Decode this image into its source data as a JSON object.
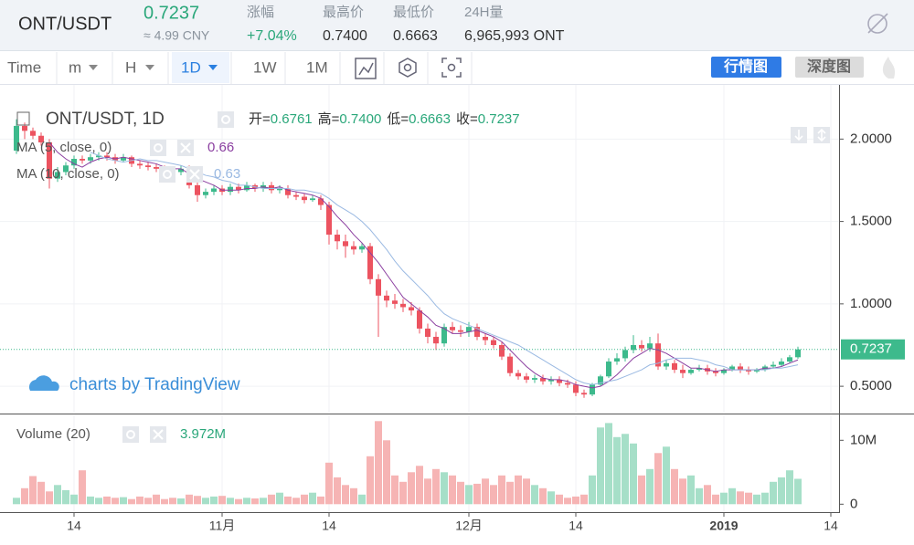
{
  "header": {
    "pair": "ONT/USDT",
    "price": "0.7237",
    "cny": "≈ 4.99 CNY",
    "stats": [
      {
        "label": "涨幅",
        "value": "+7.04%"
      },
      {
        "label": "最高价",
        "value": "0.7400"
      },
      {
        "label": "最低价",
        "value": "0.6663"
      },
      {
        "label": "24H量",
        "value": "6,965,993 ONT"
      }
    ]
  },
  "toolbar": {
    "intervals": [
      "Time",
      "m",
      "H",
      "1D",
      "1W",
      "1M"
    ],
    "views": [
      "行情图",
      "深度图"
    ]
  },
  "chart_data": [
    {
      "type": "candlestick",
      "title": "ONT/USDT, 1D",
      "watermark": "charts by TradingView",
      "legend": [
        {
          "label": "开=",
          "value": "0.6761"
        },
        {
          "label": "高=",
          "value": "0.7400"
        },
        {
          "label": "低=",
          "value": "0.6663"
        },
        {
          "label": "收=",
          "value": "0.7237"
        }
      ],
      "last_value_label": "0.7237",
      "up_color": "#3dba8c",
      "down_color": "#ec5360",
      "open": [
        1.93,
        2.08,
        2.05,
        2.02,
        1.98,
        1.76,
        1.8,
        1.84,
        1.88,
        1.87,
        1.89,
        1.9,
        1.89,
        1.87,
        1.89,
        1.85,
        1.84,
        1.83,
        1.82,
        1.81,
        1.8,
        1.82,
        1.72,
        1.66,
        1.68,
        1.7,
        1.68,
        1.71,
        1.69,
        1.72,
        1.7,
        1.72,
        1.69,
        1.7,
        1.66,
        1.65,
        1.63,
        1.64,
        1.6,
        1.42,
        1.38,
        1.35,
        1.33,
        1.35,
        1.15,
        1.05,
        1.02,
        1.0,
        0.98,
        0.96,
        0.85,
        0.8,
        0.76,
        0.86,
        0.84,
        0.83,
        0.86,
        0.8,
        0.78,
        0.75,
        0.68,
        0.58,
        0.56,
        0.54,
        0.55,
        0.53,
        0.54,
        0.52,
        0.51,
        0.46,
        0.45,
        0.51,
        0.56,
        0.65,
        0.67,
        0.72,
        0.75,
        0.73,
        0.76,
        0.62,
        0.64,
        0.6,
        0.58,
        0.6,
        0.61,
        0.59,
        0.58,
        0.6,
        0.62,
        0.6,
        0.59,
        0.6,
        0.62,
        0.63,
        0.65,
        0.6761
      ],
      "high": [
        2.12,
        2.1,
        2.07,
        2.04,
        2.0,
        1.83,
        1.86,
        1.9,
        1.9,
        1.91,
        1.92,
        1.92,
        1.91,
        1.91,
        1.9,
        1.87,
        1.86,
        1.85,
        1.84,
        1.83,
        1.84,
        1.84,
        1.74,
        1.7,
        1.72,
        1.72,
        1.73,
        1.73,
        1.74,
        1.73,
        1.74,
        1.74,
        1.72,
        1.72,
        1.68,
        1.67,
        1.66,
        1.66,
        1.62,
        1.45,
        1.42,
        1.38,
        1.37,
        1.37,
        1.18,
        1.08,
        1.06,
        1.03,
        1.01,
        0.98,
        0.88,
        0.83,
        0.88,
        0.89,
        0.87,
        0.89,
        0.88,
        0.82,
        0.8,
        0.77,
        0.7,
        0.6,
        0.58,
        0.57,
        0.57,
        0.56,
        0.56,
        0.54,
        0.53,
        0.48,
        0.52,
        0.57,
        0.67,
        0.7,
        0.74,
        0.81,
        0.78,
        0.8,
        0.82,
        0.66,
        0.66,
        0.63,
        0.61,
        0.63,
        0.63,
        0.61,
        0.61,
        0.63,
        0.64,
        0.62,
        0.61,
        0.63,
        0.65,
        0.67,
        0.69,
        0.74
      ],
      "low": [
        1.91,
        2.0,
        2.0,
        1.96,
        1.7,
        1.74,
        1.78,
        1.82,
        1.85,
        1.85,
        1.87,
        1.87,
        1.85,
        1.86,
        1.83,
        1.82,
        1.81,
        1.8,
        1.79,
        1.78,
        1.78,
        1.7,
        1.62,
        1.64,
        1.66,
        1.66,
        1.66,
        1.67,
        1.68,
        1.68,
        1.68,
        1.67,
        1.67,
        1.64,
        1.63,
        1.61,
        1.62,
        1.57,
        1.36,
        1.33,
        1.28,
        1.3,
        1.31,
        1.12,
        0.8,
        0.98,
        0.97,
        0.95,
        0.93,
        0.82,
        0.76,
        0.72,
        0.74,
        0.82,
        0.8,
        0.8,
        0.78,
        0.75,
        0.73,
        0.66,
        0.56,
        0.54,
        0.52,
        0.52,
        0.51,
        0.51,
        0.5,
        0.49,
        0.44,
        0.43,
        0.44,
        0.5,
        0.55,
        0.63,
        0.65,
        0.7,
        0.71,
        0.71,
        0.6,
        0.6,
        0.58,
        0.55,
        0.57,
        0.59,
        0.57,
        0.56,
        0.57,
        0.59,
        0.58,
        0.57,
        0.58,
        0.59,
        0.61,
        0.62,
        0.64,
        0.6663
      ],
      "close": [
        2.08,
        2.05,
        2.02,
        1.98,
        1.76,
        1.8,
        1.84,
        1.88,
        1.87,
        1.89,
        1.9,
        1.89,
        1.87,
        1.89,
        1.85,
        1.84,
        1.83,
        1.82,
        1.81,
        1.8,
        1.82,
        1.72,
        1.66,
        1.68,
        1.7,
        1.68,
        1.71,
        1.69,
        1.72,
        1.7,
        1.72,
        1.69,
        1.7,
        1.66,
        1.65,
        1.63,
        1.64,
        1.6,
        1.42,
        1.38,
        1.35,
        1.33,
        1.35,
        1.15,
        1.05,
        1.02,
        1.0,
        0.98,
        0.96,
        0.85,
        0.8,
        0.76,
        0.86,
        0.84,
        0.83,
        0.86,
        0.8,
        0.78,
        0.75,
        0.68,
        0.58,
        0.56,
        0.54,
        0.55,
        0.53,
        0.54,
        0.52,
        0.51,
        0.46,
        0.45,
        0.51,
        0.56,
        0.65,
        0.67,
        0.72,
        0.75,
        0.73,
        0.76,
        0.62,
        0.64,
        0.6,
        0.58,
        0.6,
        0.61,
        0.59,
        0.58,
        0.6,
        0.62,
        0.6,
        0.59,
        0.6,
        0.62,
        0.63,
        0.65,
        0.6761,
        0.7237
      ],
      "series": [
        {
          "name": "MA (5, close, 0)",
          "color": "#8b3fa0",
          "value_label": "0.66",
          "values": [
            null,
            null,
            null,
            null,
            1.98,
            1.92,
            1.88,
            1.85,
            1.83,
            1.86,
            1.88,
            1.89,
            1.88,
            1.89,
            1.88,
            1.87,
            1.86,
            1.85,
            1.83,
            1.82,
            1.82,
            1.79,
            1.76,
            1.74,
            1.72,
            1.69,
            1.69,
            1.69,
            1.7,
            1.7,
            1.71,
            1.7,
            1.71,
            1.69,
            1.68,
            1.67,
            1.66,
            1.64,
            1.59,
            1.53,
            1.48,
            1.42,
            1.37,
            1.31,
            1.25,
            1.18,
            1.11,
            1.04,
            1.0,
            0.96,
            0.92,
            0.87,
            0.85,
            0.82,
            0.82,
            0.83,
            0.84,
            0.82,
            0.8,
            0.77,
            0.72,
            0.67,
            0.62,
            0.58,
            0.55,
            0.54,
            0.54,
            0.53,
            0.51,
            0.5,
            0.49,
            0.5,
            0.53,
            0.57,
            0.62,
            0.67,
            0.7,
            0.73,
            0.72,
            0.7,
            0.67,
            0.64,
            0.61,
            0.61,
            0.6,
            0.59,
            0.6,
            0.6,
            0.6,
            0.6,
            0.6,
            0.61,
            0.61,
            0.62,
            0.64,
            0.66
          ]
        },
        {
          "name": "MA (10, close, 0)",
          "color": "#9ab9e2",
          "value_label": "0.63",
          "values": [
            null,
            null,
            null,
            null,
            null,
            null,
            null,
            null,
            null,
            1.92,
            1.9,
            1.88,
            1.87,
            1.86,
            1.87,
            1.88,
            1.87,
            1.87,
            1.86,
            1.85,
            1.84,
            1.82,
            1.8,
            1.78,
            1.77,
            1.75,
            1.74,
            1.72,
            1.72,
            1.71,
            1.7,
            1.7,
            1.7,
            1.7,
            1.69,
            1.69,
            1.68,
            1.67,
            1.64,
            1.6,
            1.57,
            1.54,
            1.5,
            1.45,
            1.39,
            1.33,
            1.26,
            1.2,
            1.15,
            1.1,
            1.05,
            0.99,
            0.94,
            0.91,
            0.89,
            0.87,
            0.85,
            0.83,
            0.81,
            0.79,
            0.77,
            0.75,
            0.72,
            0.69,
            0.66,
            0.63,
            0.6,
            0.57,
            0.54,
            0.52,
            0.51,
            0.52,
            0.53,
            0.54,
            0.56,
            0.58,
            0.6,
            0.63,
            0.64,
            0.66,
            0.67,
            0.67,
            0.67,
            0.66,
            0.65,
            0.63,
            0.62,
            0.6,
            0.6,
            0.6,
            0.6,
            0.6,
            0.61,
            0.61,
            0.62,
            0.63
          ]
        }
      ],
      "xlim": [
        -2,
        100
      ],
      "ylim": [
        0.34,
        2.29
      ],
      "yticks": [
        {
          "value": 0.5,
          "label": "0.5000"
        },
        {
          "value": 1,
          "label": "1.0000"
        },
        {
          "value": 1.5,
          "label": "1.5000"
        },
        {
          "value": 2,
          "label": "2.0000"
        }
      ],
      "xticks": [
        {
          "value": 7,
          "label": "14"
        },
        {
          "value": 25,
          "label": "11月"
        },
        {
          "value": 38,
          "label": "14"
        },
        {
          "value": 55,
          "label": "12月"
        },
        {
          "value": 68,
          "label": "14"
        },
        {
          "value": 86,
          "label": "2019"
        },
        {
          "value": 99,
          "label": "14"
        }
      ],
      "grid": true
    },
    {
      "type": "bar",
      "title": "Volume (20)",
      "last_value_label": "3.972M",
      "up_color": "#a6dfc8",
      "down_color": "#f6b4b4",
      "values": [
        1.0,
        2.5,
        4.4,
        3.5,
        2.0,
        3.0,
        2.2,
        1.5,
        5.3,
        1.2,
        1.0,
        1.2,
        1.0,
        1.1,
        0.8,
        1.2,
        1.0,
        1.5,
        0.8,
        1.0,
        0.9,
        1.5,
        1.3,
        1.0,
        1.2,
        1.3,
        1.0,
        0.8,
        1.0,
        0.9,
        1.0,
        1.5,
        1.8,
        1.2,
        1.0,
        1.5,
        1.8,
        1.2,
        6.5,
        4.2,
        3.0,
        2.5,
        1.5,
        7.5,
        13.0,
        10.0,
        4.5,
        3.5,
        5.0,
        6.0,
        4.0,
        5.5,
        5.0,
        4.5,
        3.5,
        3.0,
        3.2,
        4.0,
        3.0,
        4.5,
        3.5,
        4.5,
        4.0,
        3.0,
        2.5,
        2.0,
        1.5,
        1.0,
        1.2,
        1.5,
        4.5,
        12.0,
        12.7,
        10.5,
        11.0,
        9.5,
        4.5,
        5.5,
        8.0,
        9.0,
        5.5,
        4.0,
        4.5,
        2.5,
        3.0,
        1.5,
        1.8,
        2.5,
        2.0,
        1.8,
        1.5,
        1.8,
        3.5,
        4.2,
        5.3,
        3.972
      ],
      "ylim": [
        -1.1,
        13.9
      ],
      "yticks": [
        0,
        {
          "value": 10,
          "label": "10M"
        }
      ]
    }
  ]
}
